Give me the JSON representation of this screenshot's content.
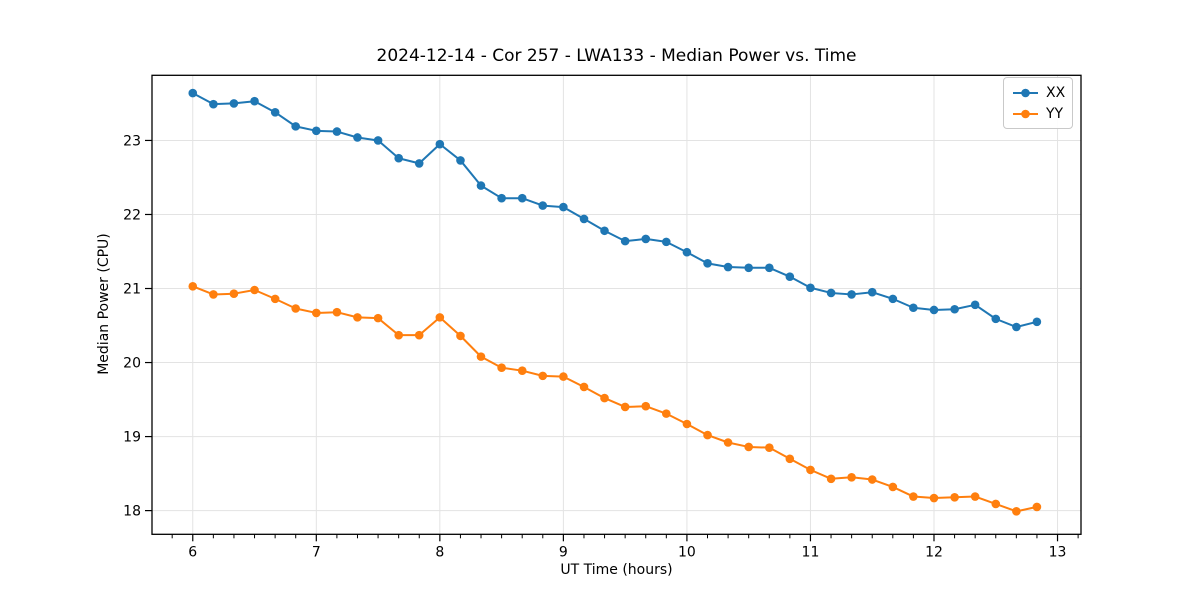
{
  "figure_title": "2024-12-14 - Cor 257 - LWA133 - Median Power vs. Time",
  "colors": {
    "series_xx": "#1f77b4",
    "series_yy": "#ff7f0e",
    "grid": "#e3e3e3",
    "spine": "#000000",
    "background": "#ffffff"
  },
  "chart_data": {
    "type": "line",
    "title": "2024-12-14 - Cor 257 - LWA133 - Median Power vs. Time",
    "xlabel": "UT Time (hours)",
    "ylabel": "Median Power (CPU)",
    "xlim": [
      5.67,
      13.19
    ],
    "ylim": [
      17.68,
      23.88
    ],
    "xticks": [
      6,
      7,
      8,
      9,
      10,
      11,
      12,
      13
    ],
    "yticks": [
      18,
      19,
      20,
      21,
      22,
      23
    ],
    "x_minor_tick_step": 0.1667,
    "grid": true,
    "legend_position": "upper right",
    "marker": "o",
    "x": [
      6.0,
      6.167,
      6.333,
      6.5,
      6.667,
      6.833,
      7.0,
      7.167,
      7.333,
      7.5,
      7.667,
      7.833,
      8.0,
      8.167,
      8.333,
      8.5,
      8.667,
      8.833,
      9.0,
      9.167,
      9.333,
      9.5,
      9.667,
      9.833,
      10.0,
      10.167,
      10.333,
      10.5,
      10.667,
      10.833,
      11.0,
      11.167,
      11.333,
      11.5,
      11.667,
      11.833,
      12.0,
      12.167,
      12.333,
      12.5,
      12.667,
      12.833
    ],
    "series": [
      {
        "name": "XX",
        "color": "#1f77b4",
        "values": [
          23.64,
          23.49,
          23.5,
          23.53,
          23.38,
          23.19,
          23.13,
          23.12,
          23.04,
          23.0,
          22.76,
          22.69,
          22.95,
          22.73,
          22.39,
          22.22,
          22.22,
          22.12,
          22.1,
          21.94,
          21.78,
          21.64,
          21.67,
          21.63,
          21.49,
          21.34,
          21.29,
          21.28,
          21.28,
          21.16,
          21.01,
          20.94,
          20.92,
          20.95,
          20.86,
          20.74,
          20.71,
          20.72,
          20.78,
          20.59,
          20.48,
          20.55
        ]
      },
      {
        "name": "YY",
        "color": "#ff7f0e",
        "values": [
          21.03,
          20.92,
          20.93,
          20.98,
          20.86,
          20.73,
          20.67,
          20.68,
          20.61,
          20.6,
          20.37,
          20.37,
          20.61,
          20.36,
          20.08,
          19.93,
          19.89,
          19.82,
          19.81,
          19.67,
          19.52,
          19.4,
          19.41,
          19.31,
          19.17,
          19.02,
          18.92,
          18.86,
          18.85,
          18.7,
          18.55,
          18.43,
          18.45,
          18.42,
          18.32,
          18.19,
          18.17,
          18.18,
          18.19,
          18.09,
          17.99,
          18.05
        ]
      }
    ]
  }
}
